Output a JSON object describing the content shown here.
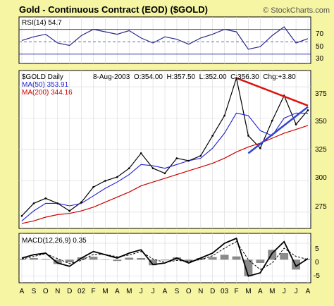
{
  "header": {
    "title": "Gold - Continuous Contract (EOD) ($GOLD)",
    "copyright": "© StockCharts.com"
  },
  "rsi_panel": {
    "label": "RSI(14) 54.7",
    "ticks": [
      "70",
      "50",
      "30"
    ]
  },
  "price_panel": {
    "symbol_label": "$GOLD Daily",
    "quote": "8-Aug-2003  O:354.00  H:357.50  L:352.00  C:356.30  Chg:+3.80",
    "ma50_label": "MA(50) 353.91",
    "ma200_label": "MA(200) 344.16",
    "ticks": [
      "375",
      "350",
      "325",
      "300",
      "275"
    ]
  },
  "macd_panel": {
    "label": "MACD(12,26,9) 0.35",
    "ticks": [
      "5",
      "0",
      "-5"
    ]
  },
  "x_axis": {
    "ticks": [
      "A",
      "S",
      "O",
      "N",
      "D",
      "02",
      "F",
      "M",
      "A",
      "M",
      "J",
      "J",
      "A",
      "S",
      "O",
      "N",
      "D",
      "03",
      "F",
      "M",
      "A",
      "M",
      "J",
      "J",
      "A"
    ]
  },
  "colors": {
    "background": "#f5f5a3",
    "panel": "#ffffff",
    "price_line": "#000000",
    "ma50": "#1f1fd0",
    "ma200": "#cc0000",
    "upper_trendline": "#dd1111",
    "lower_trendline": "#3344cc",
    "histogram": "#8a8a8a"
  },
  "chart_data": [
    {
      "type": "line",
      "name_printed": "RSI(14)",
      "ylim": [
        15,
        90
      ],
      "reference_levels": [
        70,
        50,
        30
      ],
      "x": [
        "Aug-01",
        "Sep-01",
        "Oct-01",
        "Nov-01",
        "Dec-01",
        "Jan-02",
        "Feb-02",
        "Mar-02",
        "Apr-02",
        "May-02",
        "Jun-02",
        "Jul-02",
        "Aug-02",
        "Sep-02",
        "Oct-02",
        "Nov-02",
        "Dec-02",
        "Jan-03",
        "Feb-03",
        "Mar-03",
        "Apr-03",
        "May-03",
        "Jun-03",
        "Jul-03",
        "Aug-03"
      ],
      "series": [
        {
          "name": "RSI(14)",
          "values": [
            52,
            58,
            62,
            48,
            44,
            60,
            70,
            66,
            62,
            68,
            56,
            48,
            58,
            54,
            46,
            56,
            62,
            70,
            66,
            38,
            42,
            60,
            74,
            48,
            55
          ]
        }
      ]
    },
    {
      "type": "line",
      "ylim": [
        262,
        388
      ],
      "x": [
        "Aug-01",
        "Sep-01",
        "Oct-01",
        "Nov-01",
        "Dec-01",
        "Jan-02",
        "Feb-02",
        "Mar-02",
        "Apr-02",
        "May-02",
        "Jun-02",
        "Jul-02",
        "Aug-02",
        "Sep-02",
        "Oct-02",
        "Nov-02",
        "Dec-02",
        "Jan-03",
        "Feb-03",
        "Mar-03",
        "Apr-03",
        "May-03",
        "Jun-03",
        "Jul-03",
        "Aug-03"
      ],
      "series": [
        {
          "name": "$GOLD",
          "values": [
            272,
            282,
            286,
            282,
            276,
            283,
            295,
            300,
            303,
            310,
            322,
            310,
            306,
            318,
            316,
            320,
            336,
            352,
            382,
            336,
            326,
            348,
            368,
            345,
            356.3
          ]
        },
        {
          "name": "MA(50)",
          "values": [
            268,
            276,
            282,
            282,
            280,
            282,
            288,
            294,
            299,
            305,
            313,
            312,
            310,
            313,
            316,
            318,
            326,
            338,
            354,
            352,
            340,
            336,
            350,
            354,
            353.91
          ]
        },
        {
          "name": "MA(200)",
          "values": [
            266,
            268,
            271,
            273,
            274,
            276,
            279,
            283,
            287,
            291,
            296,
            299,
            302,
            305,
            308,
            311,
            314,
            318,
            323,
            327,
            330,
            334,
            338,
            341,
            344.16
          ]
        }
      ],
      "trendlines": [
        {
          "name": "upper",
          "from": {
            "x": "Feb-03",
            "y": 382
          },
          "to": {
            "x": "Aug-03",
            "y": 360
          }
        },
        {
          "name": "lower",
          "from": {
            "x": "Mar-03",
            "y": 322
          },
          "to": {
            "x": "Aug-03",
            "y": 359
          }
        }
      ]
    },
    {
      "type": "line",
      "name_printed": "MACD(12,26,9)",
      "ylim": [
        -7,
        8
      ],
      "x": [
        "Aug-01",
        "Sep-01",
        "Oct-01",
        "Nov-01",
        "Dec-01",
        "Jan-02",
        "Feb-02",
        "Mar-02",
        "Apr-02",
        "May-02",
        "Jun-02",
        "Jul-02",
        "Aug-02",
        "Sep-02",
        "Oct-02",
        "Nov-02",
        "Dec-02",
        "Jan-03",
        "Feb-03",
        "Mar-03",
        "Apr-03",
        "May-03",
        "Jun-03",
        "Jul-03",
        "Aug-03"
      ],
      "series": [
        {
          "name": "MACD",
          "values": [
            0.5,
            1.5,
            2,
            -1,
            -2,
            0.5,
            2.5,
            1.5,
            0.5,
            2,
            3,
            -1.5,
            -1,
            0.5,
            -1,
            0.5,
            2,
            5,
            6.5,
            -5,
            -4,
            2,
            5.5,
            -2,
            0.35
          ]
        },
        {
          "name": "Signal",
          "values": [
            0.2,
            1,
            1.8,
            0.3,
            -1.2,
            -0.2,
            1.6,
            1.6,
            0.9,
            1.4,
            2.5,
            0.2,
            -0.8,
            -0.2,
            -0.5,
            0,
            1.2,
            3.5,
            5.5,
            0,
            -3,
            -1,
            3.5,
            1,
            0.1
          ]
        },
        {
          "name": "Histogram",
          "values": [
            0.3,
            0.5,
            0.2,
            -1.3,
            -0.8,
            0.7,
            0.9,
            -0.1,
            -0.4,
            0.6,
            0.5,
            -1.7,
            -0.2,
            0.7,
            -0.5,
            0.5,
            0.8,
            1.5,
            1,
            -5,
            -1,
            3,
            2,
            -3,
            0.25
          ]
        }
      ]
    }
  ]
}
